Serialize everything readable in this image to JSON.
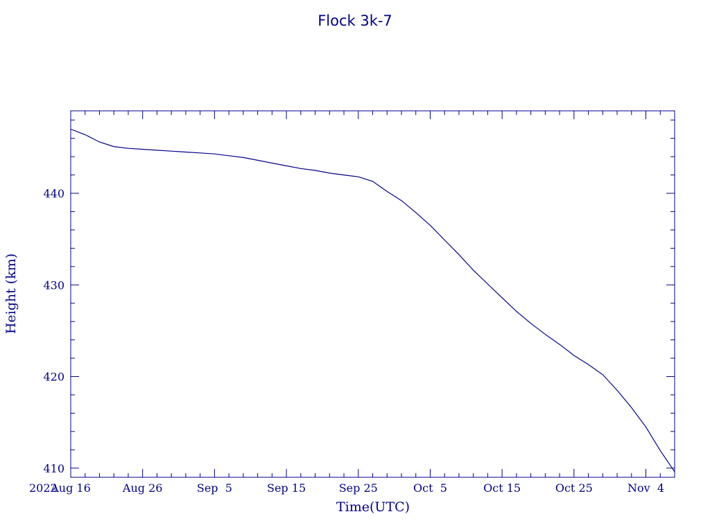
{
  "chart_data": {
    "type": "line",
    "title": "Flock 3k-7",
    "xlabel": "Time(UTC)",
    "ylabel": "Height (km)",
    "year_label": "2022",
    "color": "#00008b",
    "grid": false,
    "legend": "none",
    "xlim": [
      "2022-08-16",
      "2022-11-08"
    ],
    "ylim": [
      409,
      449
    ],
    "x_ticks": [
      {
        "date": "2022-08-16",
        "label": "Aug 16"
      },
      {
        "date": "2022-08-26",
        "label": "Aug 26"
      },
      {
        "date": "2022-09-05",
        "label": "Sep  5"
      },
      {
        "date": "2022-09-15",
        "label": "Sep 15"
      },
      {
        "date": "2022-09-25",
        "label": "Sep 25"
      },
      {
        "date": "2022-10-05",
        "label": "Oct  5"
      },
      {
        "date": "2022-10-15",
        "label": "Oct 15"
      },
      {
        "date": "2022-10-25",
        "label": "Oct 25"
      },
      {
        "date": "2022-11-04",
        "label": "Nov  4"
      }
    ],
    "y_ticks": [
      410,
      420,
      430,
      440
    ],
    "series": [
      {
        "x": [
          "2022-08-16",
          "2022-08-18",
          "2022-08-20",
          "2022-08-22",
          "2022-08-24",
          "2022-08-26",
          "2022-08-28",
          "2022-08-30",
          "2022-09-01",
          "2022-09-03",
          "2022-09-05",
          "2022-09-07",
          "2022-09-09",
          "2022-09-11",
          "2022-09-13",
          "2022-09-15",
          "2022-09-17",
          "2022-09-19",
          "2022-09-21",
          "2022-09-23",
          "2022-09-25",
          "2022-09-27",
          "2022-09-29",
          "2022-10-01",
          "2022-10-03",
          "2022-10-05",
          "2022-10-07",
          "2022-10-09",
          "2022-10-11",
          "2022-10-13",
          "2022-10-15",
          "2022-10-17",
          "2022-10-19",
          "2022-10-21",
          "2022-10-23",
          "2022-10-25",
          "2022-10-27",
          "2022-10-29",
          "2022-10-31",
          "2022-11-02",
          "2022-11-04",
          "2022-11-06",
          "2022-11-08"
        ],
        "y": [
          447.0,
          446.4,
          445.6,
          445.1,
          444.9,
          444.8,
          444.7,
          444.6,
          444.5,
          444.4,
          444.3,
          444.1,
          443.9,
          443.6,
          443.3,
          443.0,
          442.7,
          442.5,
          442.2,
          442.0,
          441.8,
          441.3,
          440.2,
          439.2,
          437.9,
          436.5,
          434.9,
          433.3,
          431.6,
          430.1,
          428.6,
          427.1,
          425.8,
          424.6,
          423.5,
          422.3,
          421.3,
          420.2,
          418.5,
          416.6,
          414.5,
          411.9,
          409.6
        ]
      }
    ]
  }
}
